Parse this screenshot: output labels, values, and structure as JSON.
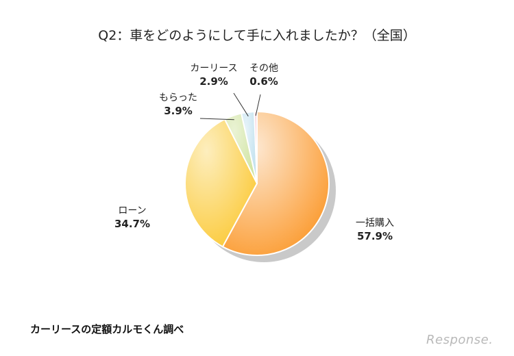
{
  "chart_data": {
    "type": "pie",
    "title": "Q2：車をどのようにして手に入れましたか？（全国）",
    "start_angle_deg": 0,
    "direction": "clockwise",
    "categories": [
      "一括購入",
      "ローン",
      "もらった",
      "カーリース",
      "その他"
    ],
    "values": [
      57.9,
      34.7,
      3.9,
      2.9,
      0.6
    ],
    "value_labels": [
      "57.9%",
      "34.7%",
      "3.9%",
      "2.9%",
      "0.6%"
    ],
    "colors": [
      "#fb9a2e",
      "#fbc936",
      "#cfe3a0",
      "#bfe0ee",
      "#f2b8c6"
    ],
    "legend": "none"
  },
  "source": "カーリースの定額カルモくん調べ",
  "watermark": "Response."
}
